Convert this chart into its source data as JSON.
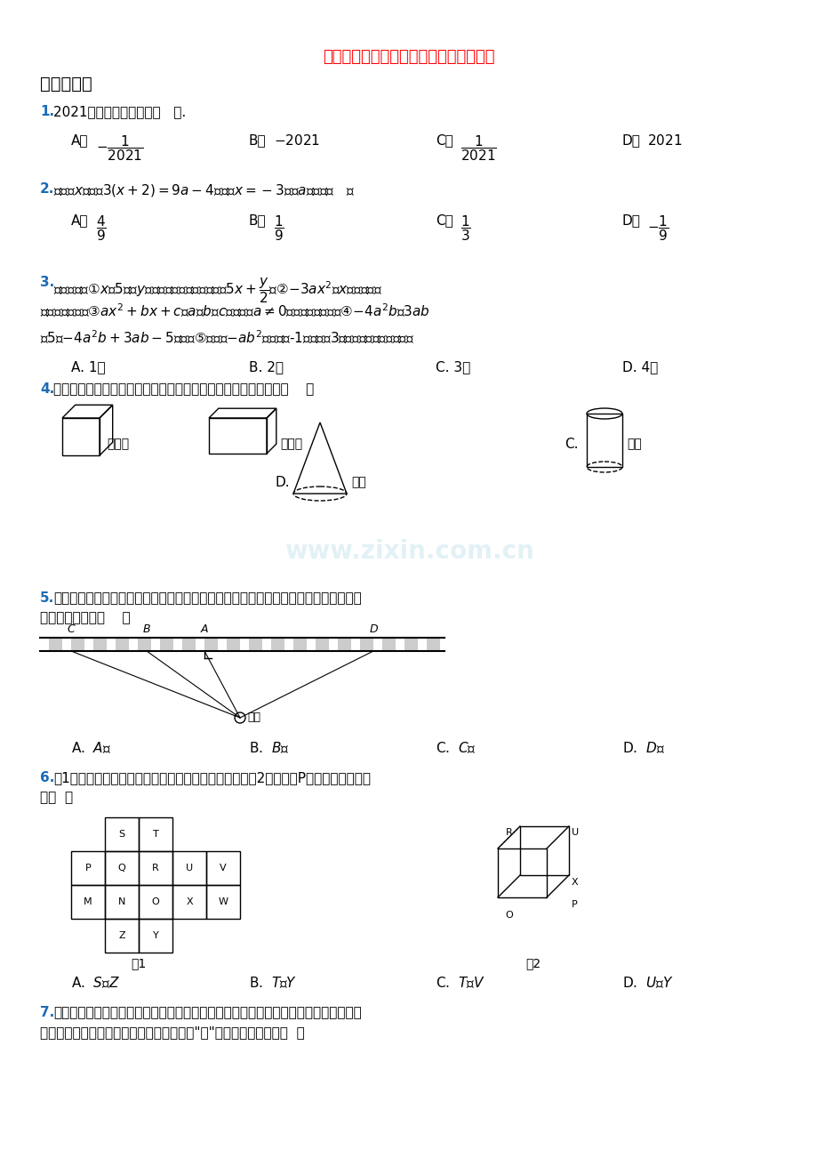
{
  "title": "初一上学期期末数学综合检测试卷带答案",
  "title_color": "#FF0000",
  "title_fontsize": 13,
  "section_header": "一、选择题",
  "section_header_fontsize": 14,
  "background_color": "#FFFFFF",
  "text_color": "#000000",
  "question_color": "#1a6bb5",
  "watermark": "www.zixin.com.cn",
  "questions": [
    {
      "num": "1",
      "text": "2021的倒数的相反数是（   ）.",
      "options": [
        "A.  $-\\dfrac{1}{2021}$",
        "B.  $-2021$",
        "C.  $\\dfrac{1}{2021}$",
        "D.  $2021$"
      ]
    },
    {
      "num": "2",
      "text": "若关于$x$的方程$3(x+2)=9a-4$的解是$x=-3$，则$a$的值是（   ）",
      "options": [
        "A.  $\\dfrac{4}{9}$",
        "B.  $\\dfrac{1}{9}$",
        "C.  $\\dfrac{1}{3}$",
        "D.  $-\\dfrac{1}{9}$"
      ]
    },
    {
      "num": "3",
      "text": "下列说法：①$x$的5倍与$y$的和的一半用代数式表示是$5x+\\dfrac{y}{2}$；②$-3ax^2$，$x$都是单项式，也都是整式；③$ax^2+bx+c$（$a$、$b$、$c$是常数，$a\\neq0$）是二次三项式；④$-4a^2b$，$3ab$，5是$-4a^2b+3ab-5$的项；⑤单项式$-ab^2$的系数是-1，次数是3，其中正确的个数是（）",
      "options": [
        "A. 1个",
        "B. 2个",
        "C. 3个",
        "D. 4个"
      ]
    },
    {
      "num": "4",
      "text": "在下面的四个几何体中，它们各自的左视图与主视图不一样的是（    ）",
      "options_inline": [
        "A.  正方体",
        "B.  长方体",
        "C.  圆柱",
        "D.  圆锥"
      ]
    },
    {
      "num": "5",
      "text": "如图，在铁路旁有一村庄，现在铁路线上选一点建火车站，且使此村庄到火车站的距离最短，则此点是（    ）",
      "options": [
        "A.  $A$点",
        "B.  $B$点",
        "C.  $C$点",
        "D.  $D$点"
      ]
    },
    {
      "num": "6",
      "text": "图1是正方体表面展开图，如果将其合成原来的正方体图2时，与点P重合的两个点应该是（  ）",
      "options": [
        "A.  $S$和$Z$",
        "B.  $T$和$Y$",
        "C.  $T$和$V$",
        "D.  $U$和$Y$"
      ]
    },
    {
      "num": "7",
      "text": "新年快到了，小聪制作了一只正方体灯笼，并在每个面都写上一个汉字，将正方体灯笼展开如图所示，那么在该正方体灯笼中，在\"祝\"相对面上的汉字是（  ）"
    }
  ]
}
